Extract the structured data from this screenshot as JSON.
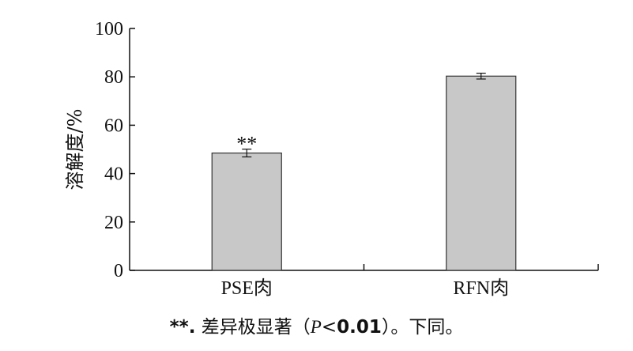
{
  "chart_data": {
    "type": "bar",
    "categories": [
      "PSE肉",
      "RFN肉"
    ],
    "values": [
      48.5,
      80.3
    ],
    "errors": [
      1.6,
      1.2
    ],
    "significance": [
      "**",
      ""
    ],
    "title": "",
    "xlabel": "",
    "ylabel": "溶解度/%",
    "ylim": [
      0,
      100
    ],
    "yticks": [
      0,
      20,
      40,
      60,
      80,
      100
    ],
    "grid": false,
    "bar_color": "#c8c8c8",
    "edge_color": "#333333"
  },
  "footnote": {
    "mark": "**.",
    "text_before": " 差异极显著（",
    "p_symbol": "P",
    "comparator": "<",
    "p_value": "0.01",
    "text_after": "）。下同。"
  }
}
